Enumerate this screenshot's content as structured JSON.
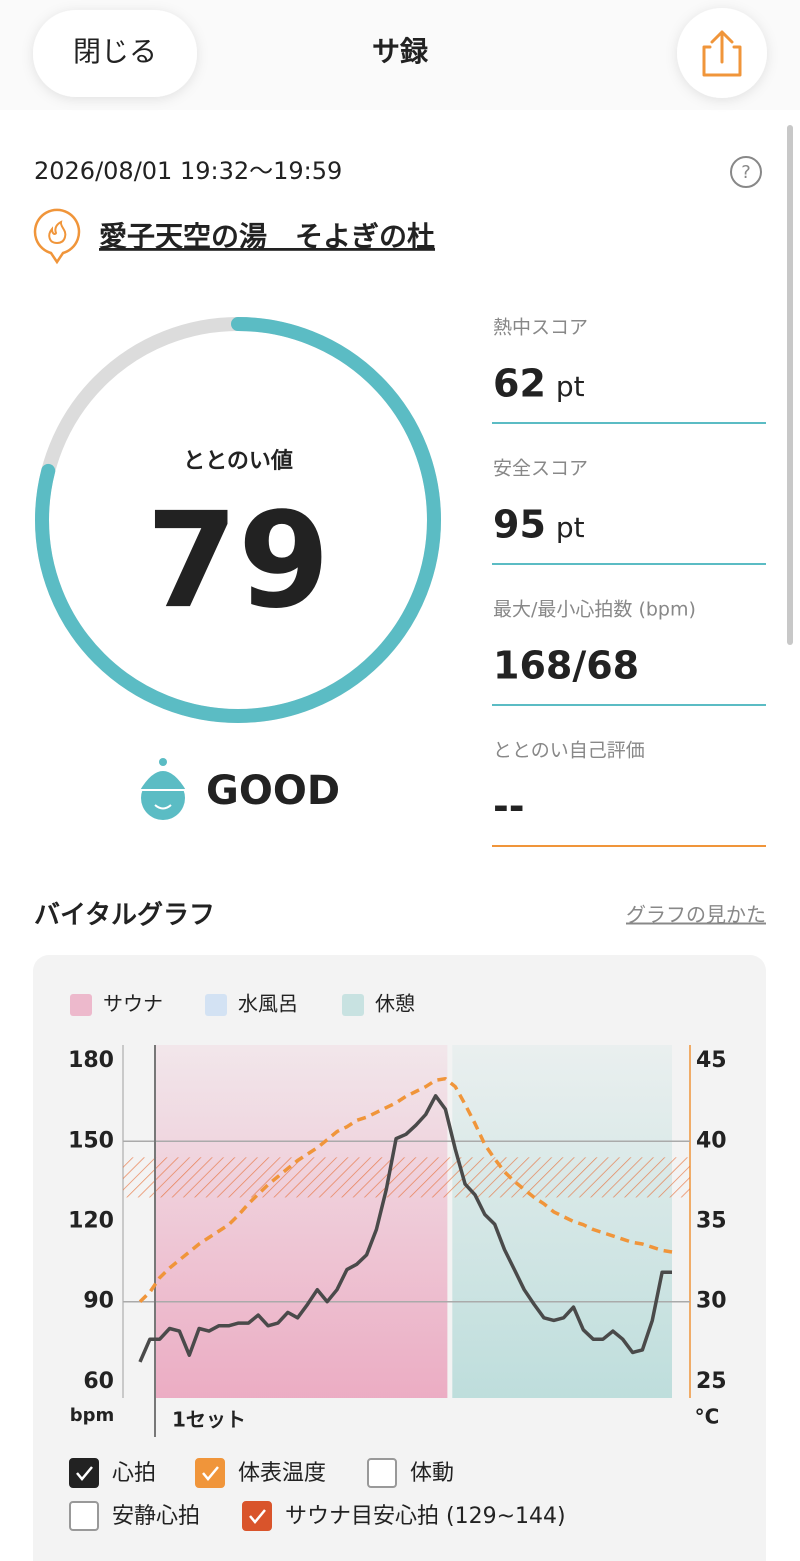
{
  "header": {
    "close": "閉じる",
    "title": "サ録"
  },
  "session": {
    "datetime": "2026/08/01 19:32〜19:59",
    "facility": "愛子天空の湯　そよぎの杜"
  },
  "score": {
    "label": "ととのい値",
    "value": 79,
    "range": [
      0,
      100
    ],
    "rating": "GOOD",
    "color": "#5bbcc4"
  },
  "stats": [
    {
      "label": "熱中スコア",
      "value": 62,
      "unit": "pt",
      "color": "#5bbcc4"
    },
    {
      "label": "安全スコア",
      "value": 95,
      "unit": "pt",
      "color": "#5bbcc4"
    },
    {
      "label": "最大/最小心拍数 (bpm)",
      "value": "168/68",
      "color": "#5bbcc4"
    },
    {
      "label": "ととのい自己評価",
      "value": "--",
      "color": "#f0953a"
    }
  ],
  "graph": {
    "title": "バイタルグラフ",
    "help_link": "グラフの見かた"
  },
  "chart_data": {
    "type": "line",
    "phases": [
      {
        "name": "サウナ",
        "color": "#eaa0bb",
        "start": 1.5,
        "end": 31.2
      },
      {
        "name": "水風呂",
        "color": "#c4daf2"
      },
      {
        "name": "休憩",
        "color": "#b5dad8",
        "start": 31.7,
        "end": 54
      }
    ],
    "set_label": "1セット",
    "y_unit": "bpm",
    "y2_unit": "°C",
    "ylim": [
      54,
      186
    ],
    "yticks": [
      60,
      90,
      120,
      150,
      180
    ],
    "y2lim": [
      24,
      46
    ],
    "y2ticks": [
      25,
      30,
      35,
      40,
      45
    ],
    "gridlines": [
      90,
      150
    ],
    "target_band": {
      "low": 129,
      "high": 144,
      "color": "#e8703a"
    },
    "series": [
      {
        "color": "#4a4a4a",
        "values": [
          67.5,
          76,
          76,
          80,
          79,
          70,
          80,
          79,
          81,
          81,
          82,
          82,
          85,
          81,
          82,
          86,
          84,
          89,
          94.5,
          90,
          94.5,
          102,
          104,
          107.5,
          117,
          132,
          151,
          152.6,
          156,
          160,
          167,
          162,
          147,
          134,
          130,
          122.6,
          119,
          109.5,
          102,
          94.5,
          89,
          84,
          83,
          84,
          88,
          79.5,
          76,
          76,
          79,
          76,
          71,
          72,
          83,
          101,
          101
        ]
      },
      {
        "color": "#f0953a",
        "axis": "y2",
        "dashed": true,
        "values": [
          30,
          30.6,
          31.5,
          32.1,
          32.6,
          33.1,
          33.6,
          34,
          34.4,
          34.8,
          35.4,
          36.1,
          36.7,
          37.3,
          37.8,
          38.3,
          38.8,
          39.2,
          39.6,
          40.1,
          40.6,
          40.9,
          41.3,
          41.5,
          41.8,
          42.1,
          42.4,
          42.8,
          43.1,
          43.4,
          43.8,
          43.9,
          43.4,
          42.3,
          41.1,
          39.8,
          38.9,
          38.1,
          37.5,
          37,
          36.5,
          36.1,
          35.6,
          35.3,
          35,
          34.8,
          34.5,
          34.3,
          34.1,
          33.9,
          33.7,
          33.6,
          33.4,
          33.2,
          33.1
        ]
      }
    ],
    "toggles": [
      {
        "label": "心拍",
        "checked": true,
        "color": "#222222"
      },
      {
        "label": "体表温度",
        "checked": true,
        "color": "#f0953a"
      },
      {
        "label": "体動",
        "checked": false
      },
      {
        "label": "安静心拍",
        "checked": false
      },
      {
        "label": "サウナ目安心拍 (129~144)",
        "checked": true,
        "color": "#d9542b"
      }
    ]
  }
}
